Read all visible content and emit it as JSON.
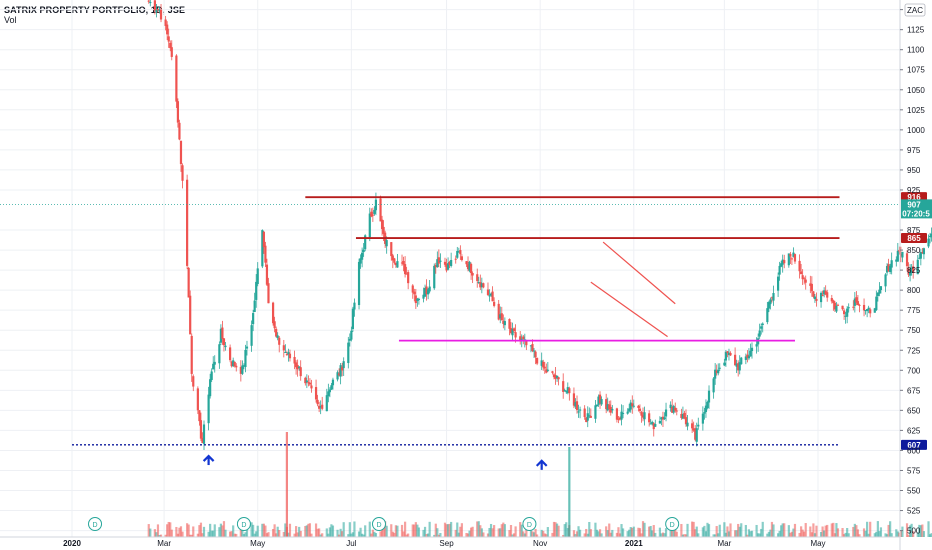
{
  "header": {
    "title": "SATRIX PROPERTY PORTFOLIO, 1D, JSE",
    "volume_label": "Vol",
    "currency": "ZAC"
  },
  "colors": {
    "up": "#26a69a",
    "down": "#ef5350",
    "resistance": "#b71c1c",
    "support_mid": "#e91ee3",
    "support_low": "#0d1a9c",
    "last_price": "#26a69a",
    "arrow": "#1336d1",
    "grid": "#eef0f4"
  },
  "chart_data": {
    "type": "candlestick",
    "x_ticks": [
      {
        "label": "2020",
        "bold": true,
        "x": "2020-01"
      },
      {
        "label": "Mar",
        "x": "2020-03"
      },
      {
        "label": "May",
        "x": "2020-05"
      },
      {
        "label": "Jul",
        "x": "2020-07"
      },
      {
        "label": "Sep",
        "x": "2020-09"
      },
      {
        "label": "Nov",
        "x": "2020-11"
      },
      {
        "label": "2021",
        "bold": true,
        "x": "2021-01"
      },
      {
        "label": "Mar",
        "x": "2021-03"
      },
      {
        "label": "May",
        "x": "2021-05"
      }
    ],
    "y_ticks": [
      "500",
      "525",
      "550",
      "575",
      "600",
      "625",
      "650",
      "675",
      "700",
      "725",
      "750",
      "775",
      "800",
      "825",
      "850",
      "875",
      "925",
      "950",
      "975",
      "1000",
      "1025",
      "1050",
      "1075",
      "1100",
      "1125",
      "1150"
    ],
    "ylim": [
      492,
      1162
    ],
    "price_path": [
      [
        "2020-02-20",
        1160
      ],
      [
        "2020-02-27",
        1150
      ],
      [
        "2020-03-05",
        1105
      ],
      [
        "2020-03-10",
        1015
      ],
      [
        "2020-03-15",
        880
      ],
      [
        "2020-03-19",
        700
      ],
      [
        "2020-03-24",
        630
      ],
      [
        "2020-03-26",
        610
      ],
      [
        "2020-03-31",
        690
      ],
      [
        "2020-04-07",
        745
      ],
      [
        "2020-04-14",
        710
      ],
      [
        "2020-04-21",
        700
      ],
      [
        "2020-04-28",
        770
      ],
      [
        "2020-05-04",
        880
      ],
      [
        "2020-05-08",
        790
      ],
      [
        "2020-05-13",
        740
      ],
      [
        "2020-05-20",
        720
      ],
      [
        "2020-05-27",
        705
      ],
      [
        "2020-06-03",
        680
      ],
      [
        "2020-06-10",
        650
      ],
      [
        "2020-06-17",
        680
      ],
      [
        "2020-06-24",
        700
      ],
      [
        "2020-06-30",
        740
      ],
      [
        "2020-07-06",
        830
      ],
      [
        "2020-07-13",
        890
      ],
      [
        "2020-07-17",
        910
      ],
      [
        "2020-07-22",
        865
      ],
      [
        "2020-07-29",
        840
      ],
      [
        "2020-08-05",
        825
      ],
      [
        "2020-08-12",
        790
      ],
      [
        "2020-08-19",
        800
      ],
      [
        "2020-08-26",
        840
      ],
      [
        "2020-09-02",
        830
      ],
      [
        "2020-09-09",
        845
      ],
      [
        "2020-09-16",
        830
      ],
      [
        "2020-09-23",
        810
      ],
      [
        "2020-09-30",
        790
      ],
      [
        "2020-10-07",
        760
      ],
      [
        "2020-10-14",
        745
      ],
      [
        "2020-10-21",
        735
      ],
      [
        "2020-10-28",
        720
      ],
      [
        "2020-11-04",
        700
      ],
      [
        "2020-11-11",
        690
      ],
      [
        "2020-11-18",
        675
      ],
      [
        "2020-11-25",
        655
      ],
      [
        "2020-12-02",
        640
      ],
      [
        "2020-12-09",
        665
      ],
      [
        "2020-12-16",
        650
      ],
      [
        "2020-12-23",
        640
      ],
      [
        "2020-12-30",
        660
      ],
      [
        "2021-01-06",
        650
      ],
      [
        "2021-01-13",
        630
      ],
      [
        "2021-01-20",
        645
      ],
      [
        "2021-01-27",
        655
      ],
      [
        "2021-02-03",
        640
      ],
      [
        "2021-02-10",
        615
      ],
      [
        "2021-02-17",
        660
      ],
      [
        "2021-02-24",
        700
      ],
      [
        "2021-03-03",
        720
      ],
      [
        "2021-03-10",
        705
      ],
      [
        "2021-03-17",
        720
      ],
      [
        "2021-03-24",
        745
      ],
      [
        "2021-03-31",
        790
      ],
      [
        "2021-04-07",
        830
      ],
      [
        "2021-04-14",
        845
      ],
      [
        "2021-04-21",
        820
      ],
      [
        "2021-04-28",
        790
      ],
      [
        "2021-05-05",
        800
      ],
      [
        "2021-05-12",
        780
      ],
      [
        "2021-05-19",
        775
      ],
      [
        "2021-05-26",
        790
      ],
      [
        "2021-06-02",
        770
      ],
      [
        "2021-06-09",
        790
      ],
      [
        "2021-06-16",
        830
      ],
      [
        "2021-06-23",
        850
      ],
      [
        "2021-06-30",
        820
      ],
      [
        "2021-07-07",
        850
      ],
      [
        "2021-07-14",
        870
      ],
      [
        "2021-07-21",
        885
      ],
      [
        "2021-07-28",
        890
      ],
      [
        "2021-08-04",
        880
      ],
      [
        "2021-08-10",
        905
      ]
    ],
    "horizontal_lines": [
      {
        "name": "resistance-916",
        "price": 916,
        "x_start": "2020-06-01",
        "x_end": "2021-05-15",
        "color": "resistance",
        "style": "solid",
        "label": "916"
      },
      {
        "name": "resistance-865",
        "price": 865,
        "x_start": "2020-07-04",
        "x_end": "2021-05-15",
        "color": "resistance",
        "style": "solid",
        "label": "865"
      },
      {
        "name": "support-737",
        "price": 737,
        "x_start": "2020-08-01",
        "x_end": "2021-04-16",
        "color": "support_mid",
        "style": "solid",
        "label": ""
      },
      {
        "name": "support-607",
        "price": 607,
        "x_start": "2020-01-01",
        "x_end": "2021-05-15",
        "color": "support_low",
        "style": "dotted",
        "label": "607"
      }
    ],
    "channel": [
      {
        "from": [
          "2020-12-12",
          860
        ],
        "to": [
          "2021-01-28",
          783
        ]
      },
      {
        "from": [
          "2020-12-04",
          810
        ],
        "to": [
          "2021-01-23",
          742
        ]
      }
    ],
    "arrows": [
      {
        "x": "2020-03-30",
        "price": 593
      },
      {
        "x": "2020-11-02",
        "price": 587
      }
    ],
    "last_price": {
      "value": "907",
      "countdown": "07:20:5",
      "price": 907
    },
    "dividend_markers": [
      {
        "x": "2020-01-16",
        "label": "D"
      },
      {
        "x": "2020-04-22",
        "label": "D"
      },
      {
        "x": "2020-07-19",
        "label": "D"
      },
      {
        "x": "2020-10-25",
        "label": "D"
      },
      {
        "x": "2021-01-26",
        "label": "D"
      }
    ]
  }
}
